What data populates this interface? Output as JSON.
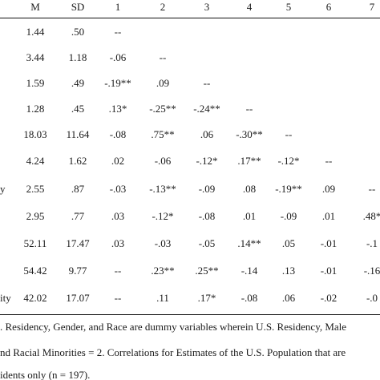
{
  "table": {
    "headers": [
      "M",
      "SD",
      "1",
      "2",
      "3",
      "4",
      "5",
      "6",
      "7"
    ],
    "rows": [
      {
        "label": "",
        "cells": [
          "1.44",
          ".50",
          "--",
          "",
          "",
          "",
          "",
          "",
          ""
        ]
      },
      {
        "label": "",
        "cells": [
          "3.44",
          "1.18",
          "-.06",
          "--",
          "",
          "",
          "",
          "",
          ""
        ]
      },
      {
        "label": "",
        "cells": [
          "1.59",
          ".49",
          "-.19**",
          ".09",
          "--",
          "",
          "",
          "",
          ""
        ]
      },
      {
        "label": "",
        "cells": [
          "1.28",
          ".45",
          ".13*",
          "-.25**",
          "-.24**",
          "--",
          "",
          "",
          ""
        ]
      },
      {
        "label": "",
        "cells": [
          "18.03",
          "11.64",
          "-.08",
          ".75**",
          ".06",
          "-.30**",
          "--",
          "",
          ""
        ]
      },
      {
        "label": "",
        "cells": [
          "4.24",
          "1.62",
          ".02",
          "-.06",
          "-.12*",
          ".17**",
          "-.12*",
          "--",
          ""
        ]
      },
      {
        "label": "y",
        "cells": [
          "2.55",
          ".87",
          "-.03",
          "-.13**",
          "-.09",
          ".08",
          "-.19**",
          ".09",
          "--"
        ]
      },
      {
        "label": "",
        "cells": [
          "2.95",
          ".77",
          ".03",
          "-.12*",
          "-.08",
          ".01",
          "-.09",
          ".01",
          ".48*"
        ]
      },
      {
        "label": "",
        "cells": [
          "52.11",
          "17.47",
          ".03",
          "-.03",
          "-.05",
          ".14**",
          ".05",
          "-.01",
          "-.1"
        ]
      },
      {
        "label": "",
        "cells": [
          "54.42",
          "9.77",
          "--",
          ".23**",
          ".25**",
          "-.14",
          ".13",
          "-.01",
          "-.16"
        ]
      },
      {
        "label": "ity",
        "cells": [
          "42.02",
          "17.07",
          "--",
          ".11",
          ".17*",
          "-.08",
          ".06",
          "-.02",
          "-.0"
        ]
      }
    ]
  },
  "notes": [
    ". Residency, Gender, and Race are dummy variables wherein U.S. Residency, Male",
    "nd Racial Minorities = 2.  Correlations for Estimates of the U.S. Population that are",
    "idents only (n = 197)."
  ]
}
